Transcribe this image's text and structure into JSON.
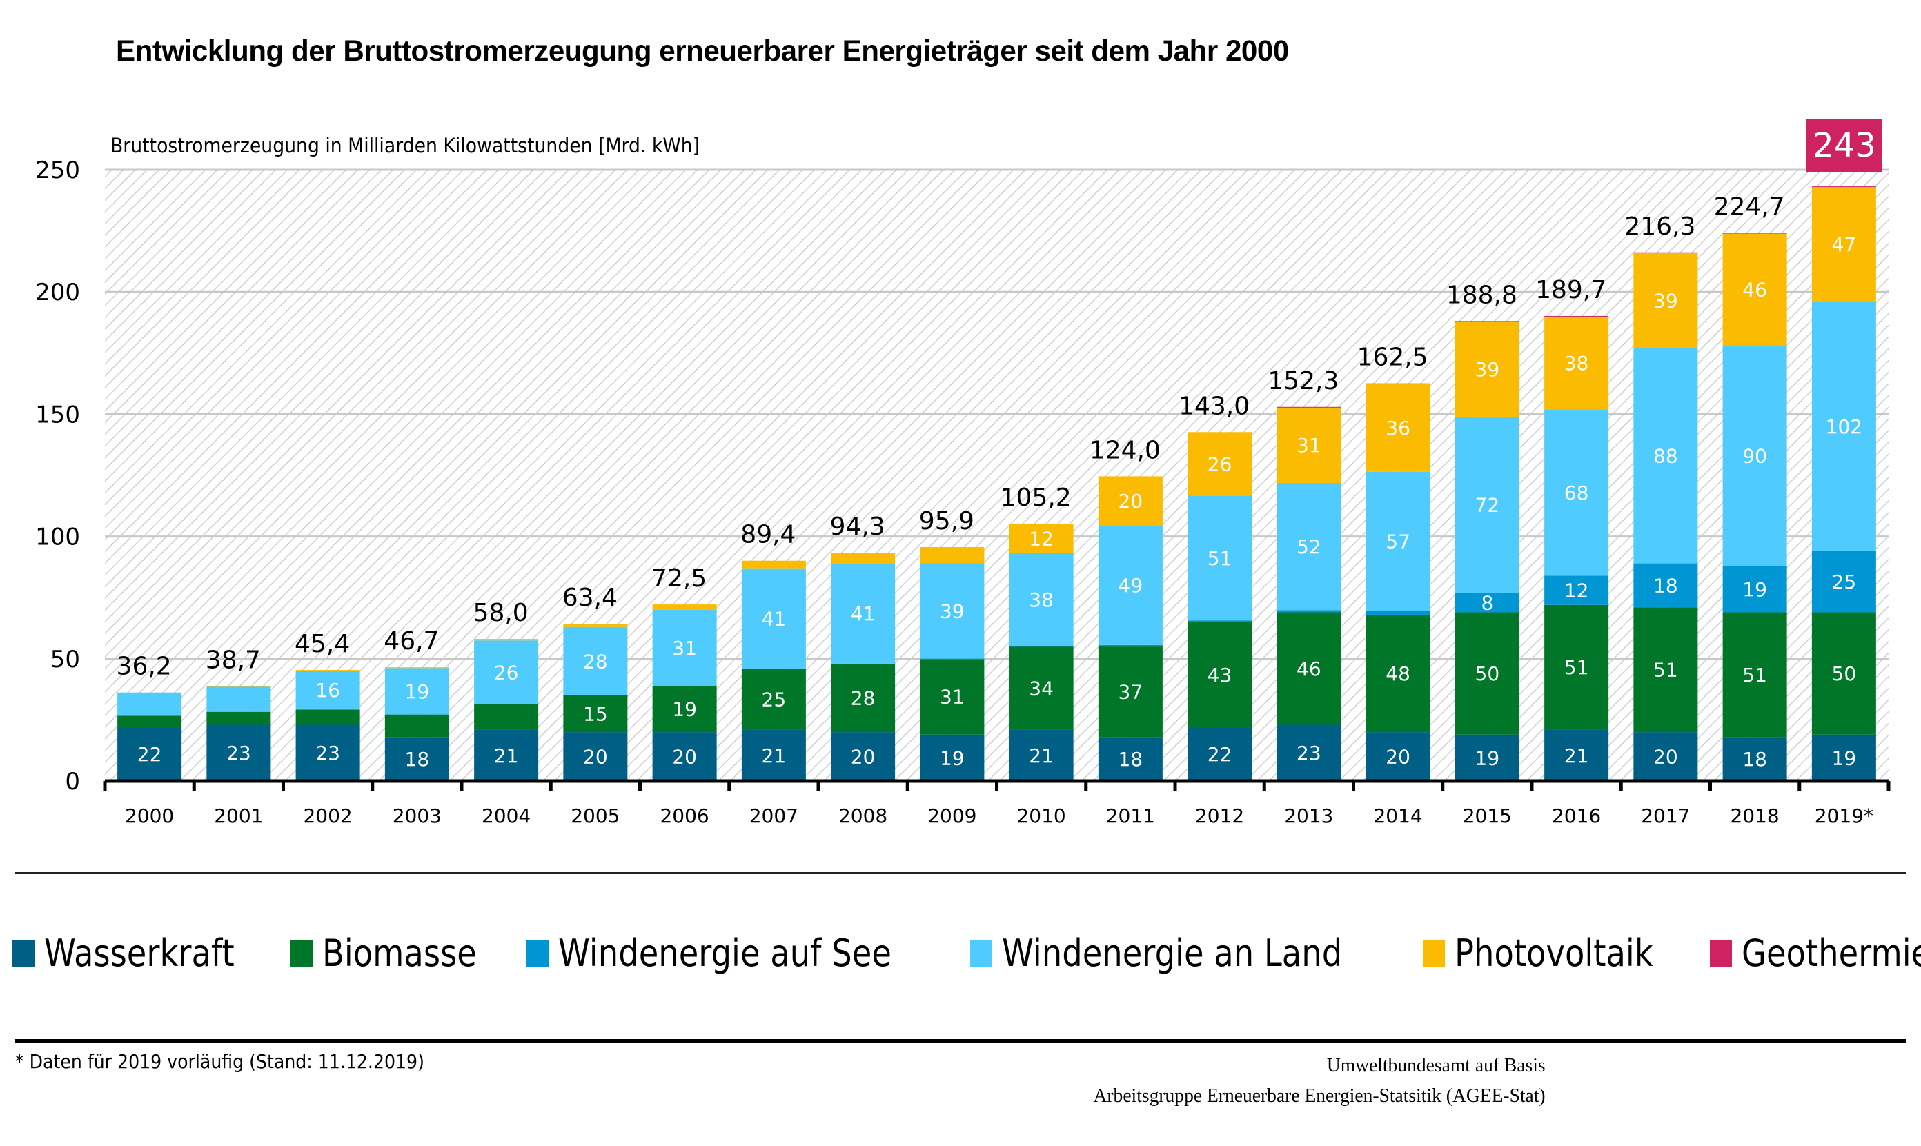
{
  "header": {
    "title": "Entwicklung der Bruttostromerzeugung erneuerbarer Energieträger seit dem Jahr 2000",
    "subtitle": "Bruttostromerzeugung in Milliarden Kilowattstunden [Mrd. kWh]"
  },
  "highlight": {
    "value": "243",
    "color": "#cf2361"
  },
  "legend": [
    {
      "label": "Wasserkraft",
      "color": "#005f85"
    },
    {
      "label": "Biomasse",
      "color": "#007629"
    },
    {
      "label": "Windenergie auf See",
      "color": "#0096d3"
    },
    {
      "label": "Windenergie an Land",
      "color": "#4fcbfd"
    },
    {
      "label": "Photovoltaik",
      "color": "#fabb00"
    },
    {
      "label": "Geothermie",
      "color": "#cf2361"
    }
  ],
  "footer": {
    "note": "* Daten für 2019 vorläufig (Stand: 11.12.2019)",
    "source_line1": "Umweltbundesamt auf Basis",
    "source_line2": "Arbeitsgruppe Erneuerbare Energien-Statsitik (AGEE-Stat)"
  },
  "chart_data": {
    "type": "bar",
    "stacked": true,
    "title": "Entwicklung der Bruttostromerzeugung erneuerbarer Energieträger seit dem Jahr 2000",
    "ylabel": "Bruttostromerzeugung in Milliarden Kilowattstunden [Mrd. kWh]",
    "xlabel": "",
    "ylim": [
      0,
      250
    ],
    "yticks": [
      0,
      50,
      100,
      150,
      200,
      250
    ],
    "grid": true,
    "legend_position": "bottom",
    "categories": [
      "2000",
      "2001",
      "2002",
      "2003",
      "2004",
      "2005",
      "2006",
      "2007",
      "2008",
      "2009",
      "2010",
      "2011",
      "2012",
      "2013",
      "2014",
      "2015",
      "2016",
      "2017",
      "2018",
      "2019*"
    ],
    "totals": [
      "36,2",
      "38,7",
      "45,4",
      "46,7",
      "58,0",
      "63,4",
      "72,5",
      "89,4",
      "94,3",
      "95,9",
      "105,2",
      "124,0",
      "143,0",
      "152,3",
      "162,5",
      "188,8",
      "189,7",
      "216,3",
      "224,7",
      "243"
    ],
    "series": [
      {
        "name": "Wasserkraft",
        "color": "#005f85",
        "values": [
          22,
          23,
          23,
          18,
          21,
          20,
          20,
          21,
          20,
          19,
          21,
          18,
          22,
          23,
          20,
          19,
          21,
          20,
          18,
          19
        ],
        "labels": [
          "22",
          "23",
          "23",
          "18",
          "21",
          "20",
          "20",
          "21",
          "20",
          "19",
          "21",
          "18",
          "22",
          "23",
          "20",
          "19",
          "21",
          "20",
          "18",
          "19"
        ]
      },
      {
        "name": "Biomasse",
        "color": "#007629",
        "values": [
          4.7,
          5.3,
          6.2,
          9.2,
          10.5,
          15,
          19,
          25,
          28,
          31,
          34,
          37,
          43,
          46,
          48,
          50,
          51,
          51,
          51,
          50
        ],
        "labels": [
          null,
          null,
          null,
          null,
          null,
          "15",
          "19",
          "25",
          "28",
          "31",
          "34",
          "37",
          "43",
          "46",
          "48",
          "50",
          "51",
          "51",
          "51",
          "50"
        ]
      },
      {
        "name": "Windenergie auf See",
        "color": "#0096d3",
        "values": [
          0,
          0,
          0,
          0,
          0,
          0,
          0,
          0,
          0,
          0.04,
          0.2,
          0.6,
          0.7,
          0.9,
          1.5,
          8,
          12,
          18,
          19,
          25
        ],
        "labels": [
          null,
          null,
          null,
          null,
          null,
          null,
          null,
          null,
          null,
          null,
          null,
          null,
          null,
          null,
          null,
          "8",
          "12",
          "18",
          "19",
          "25"
        ]
      },
      {
        "name": "Windenergie an Land",
        "color": "#4fcbfd",
        "values": [
          9.5,
          10.4,
          16,
          19,
          26,
          28,
          31,
          41,
          41,
          39,
          38,
          49,
          51,
          52,
          57,
          72,
          68,
          88,
          90,
          102
        ],
        "labels": [
          null,
          null,
          "16",
          "19",
          "26",
          "28",
          "31",
          "41",
          "41",
          "39",
          "38",
          "49",
          "51",
          "52",
          "57",
          "72",
          "68",
          "88",
          "90",
          "102"
        ]
      },
      {
        "name": "Photovoltaik",
        "color": "#fabb00",
        "values": [
          0,
          0.1,
          0.2,
          0.3,
          0.6,
          1.3,
          2.2,
          3.1,
          4.4,
          6.6,
          12,
          20,
          26,
          31,
          36,
          39,
          38,
          39,
          46,
          47
        ],
        "labels": [
          null,
          null,
          null,
          null,
          null,
          null,
          null,
          null,
          null,
          null,
          "12",
          "20",
          "26",
          "31",
          "36",
          "39",
          "38",
          "39",
          "46",
          "47"
        ]
      },
      {
        "name": "Geothermie",
        "color": "#cf2361",
        "values": [
          0,
          0,
          0,
          0,
          0,
          0,
          0,
          0,
          0,
          0,
          0,
          0,
          0,
          0.1,
          0.1,
          0.1,
          0.2,
          0.2,
          0.2,
          0.2
        ],
        "labels": [
          null,
          null,
          null,
          null,
          null,
          null,
          null,
          null,
          null,
          null,
          null,
          null,
          null,
          null,
          null,
          null,
          null,
          null,
          null,
          null
        ]
      }
    ]
  }
}
